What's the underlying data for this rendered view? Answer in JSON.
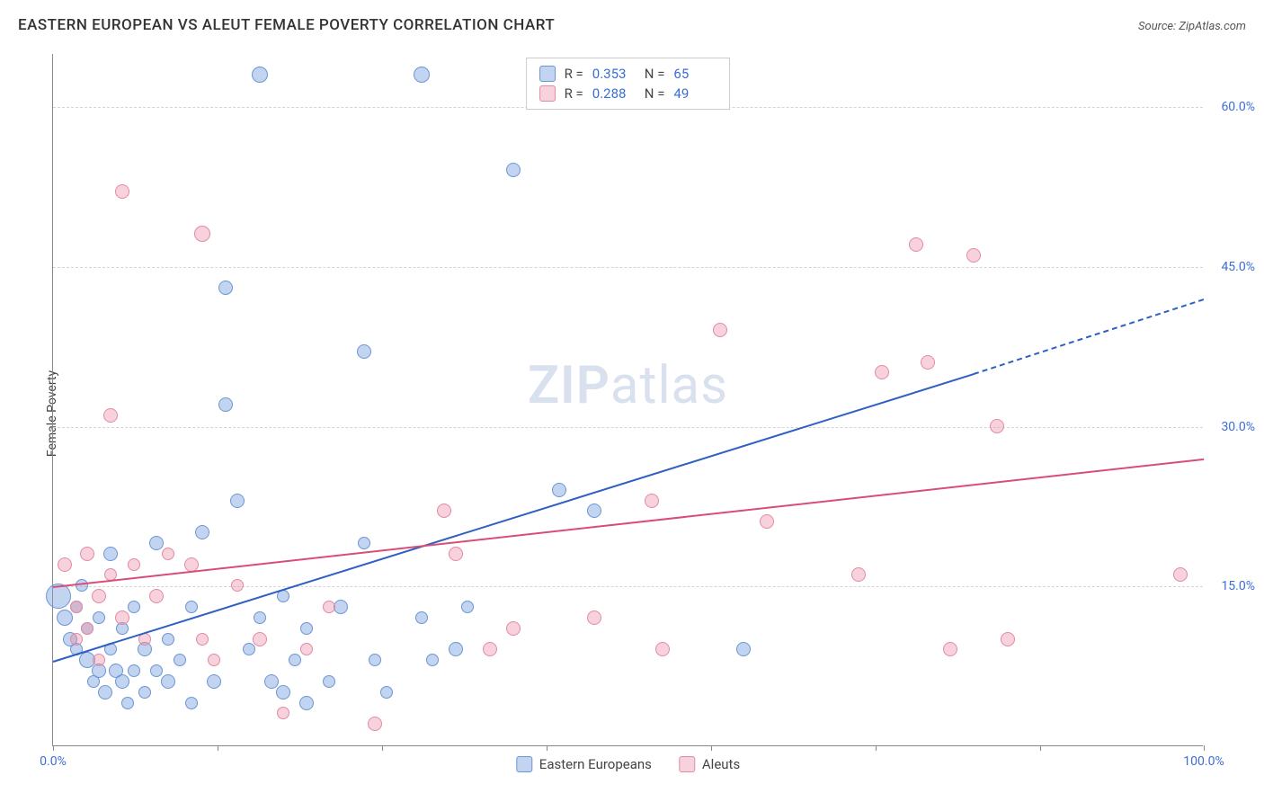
{
  "title": "EASTERN EUROPEAN VS ALEUT FEMALE POVERTY CORRELATION CHART",
  "source": "Source: ZipAtlas.com",
  "ylabel": "Female Poverty",
  "watermark": {
    "bold": "ZIP",
    "rest": "atlas"
  },
  "chart": {
    "type": "scatter-with-trend",
    "xlim": [
      0,
      100
    ],
    "ylim": [
      0,
      65
    ],
    "xtick_positions": [
      0,
      14.3,
      28.6,
      42.9,
      57.2,
      71.5,
      85.8,
      100
    ],
    "xtick_labels_shown": {
      "0": "0.0%",
      "100": "100.0%"
    },
    "ytick_positions": [
      15,
      30,
      45,
      60
    ],
    "ytick_labels": [
      "15.0%",
      "30.0%",
      "45.0%",
      "60.0%"
    ],
    "grid_color": "#d5d5d5",
    "axis_color": "#888888",
    "background_color": "#ffffff",
    "tick_label_color": "#3a6fd8",
    "tick_fontsize": 14
  },
  "series": [
    {
      "name": "Eastern Europeans",
      "color_fill": "rgba(120,160,220,0.45)",
      "color_stroke": "#6a96d6",
      "trend_color": "#2f5fc4",
      "r": 0.353,
      "n": 65,
      "trend": {
        "x1": 0,
        "y1": 8,
        "x2": 80,
        "y2": 35,
        "dash_to_x": 100,
        "dash_to_y": 42
      },
      "points": [
        {
          "x": 0.5,
          "y": 14,
          "r": 14
        },
        {
          "x": 1,
          "y": 12,
          "r": 9
        },
        {
          "x": 1.5,
          "y": 10,
          "r": 8
        },
        {
          "x": 2,
          "y": 13,
          "r": 7
        },
        {
          "x": 2,
          "y": 9,
          "r": 7
        },
        {
          "x": 2.5,
          "y": 15,
          "r": 7
        },
        {
          "x": 3,
          "y": 8,
          "r": 9
        },
        {
          "x": 3,
          "y": 11,
          "r": 7
        },
        {
          "x": 3.5,
          "y": 6,
          "r": 7
        },
        {
          "x": 4,
          "y": 7,
          "r": 8
        },
        {
          "x": 4,
          "y": 12,
          "r": 7
        },
        {
          "x": 4.5,
          "y": 5,
          "r": 8
        },
        {
          "x": 5,
          "y": 18,
          "r": 8
        },
        {
          "x": 5,
          "y": 9,
          "r": 7
        },
        {
          "x": 5.5,
          "y": 7,
          "r": 8
        },
        {
          "x": 6,
          "y": 6,
          "r": 8
        },
        {
          "x": 6,
          "y": 11,
          "r": 7
        },
        {
          "x": 6.5,
          "y": 4,
          "r": 7
        },
        {
          "x": 7,
          "y": 13,
          "r": 7
        },
        {
          "x": 7,
          "y": 7,
          "r": 7
        },
        {
          "x": 8,
          "y": 9,
          "r": 8
        },
        {
          "x": 8,
          "y": 5,
          "r": 7
        },
        {
          "x": 9,
          "y": 19,
          "r": 8
        },
        {
          "x": 9,
          "y": 7,
          "r": 7
        },
        {
          "x": 10,
          "y": 6,
          "r": 8
        },
        {
          "x": 10,
          "y": 10,
          "r": 7
        },
        {
          "x": 11,
          "y": 8,
          "r": 7
        },
        {
          "x": 12,
          "y": 4,
          "r": 7
        },
        {
          "x": 12,
          "y": 13,
          "r": 7
        },
        {
          "x": 13,
          "y": 20,
          "r": 8
        },
        {
          "x": 14,
          "y": 6,
          "r": 8
        },
        {
          "x": 15,
          "y": 32,
          "r": 8
        },
        {
          "x": 15,
          "y": 43,
          "r": 8
        },
        {
          "x": 16,
          "y": 23,
          "r": 8
        },
        {
          "x": 17,
          "y": 9,
          "r": 7
        },
        {
          "x": 18,
          "y": 63,
          "r": 9
        },
        {
          "x": 18,
          "y": 12,
          "r": 7
        },
        {
          "x": 19,
          "y": 6,
          "r": 8
        },
        {
          "x": 20,
          "y": 5,
          "r": 8
        },
        {
          "x": 20,
          "y": 14,
          "r": 7
        },
        {
          "x": 21,
          "y": 8,
          "r": 7
        },
        {
          "x": 22,
          "y": 4,
          "r": 8
        },
        {
          "x": 22,
          "y": 11,
          "r": 7
        },
        {
          "x": 24,
          "y": 6,
          "r": 7
        },
        {
          "x": 25,
          "y": 13,
          "r": 8
        },
        {
          "x": 27,
          "y": 37,
          "r": 8
        },
        {
          "x": 27,
          "y": 19,
          "r": 7
        },
        {
          "x": 28,
          "y": 8,
          "r": 7
        },
        {
          "x": 29,
          "y": 5,
          "r": 7
        },
        {
          "x": 32,
          "y": 63,
          "r": 9
        },
        {
          "x": 32,
          "y": 12,
          "r": 7
        },
        {
          "x": 33,
          "y": 8,
          "r": 7
        },
        {
          "x": 35,
          "y": 9,
          "r": 8
        },
        {
          "x": 36,
          "y": 13,
          "r": 7
        },
        {
          "x": 40,
          "y": 54,
          "r": 8
        },
        {
          "x": 44,
          "y": 24,
          "r": 8
        },
        {
          "x": 47,
          "y": 22,
          "r": 8
        },
        {
          "x": 60,
          "y": 9,
          "r": 8
        }
      ]
    },
    {
      "name": "Aleuts",
      "color_fill": "rgba(235,140,165,0.40)",
      "color_stroke": "#e48aa3",
      "trend_color": "#d94e78",
      "r": 0.288,
      "n": 49,
      "trend": {
        "x1": 0,
        "y1": 15,
        "x2": 100,
        "y2": 27
      },
      "points": [
        {
          "x": 1,
          "y": 17,
          "r": 8
        },
        {
          "x": 2,
          "y": 13,
          "r": 7
        },
        {
          "x": 2,
          "y": 10,
          "r": 7
        },
        {
          "x": 3,
          "y": 18,
          "r": 8
        },
        {
          "x": 3,
          "y": 11,
          "r": 7
        },
        {
          "x": 4,
          "y": 14,
          "r": 8
        },
        {
          "x": 4,
          "y": 8,
          "r": 7
        },
        {
          "x": 5,
          "y": 31,
          "r": 8
        },
        {
          "x": 5,
          "y": 16,
          "r": 7
        },
        {
          "x": 6,
          "y": 12,
          "r": 8
        },
        {
          "x": 6,
          "y": 52,
          "r": 8
        },
        {
          "x": 7,
          "y": 17,
          "r": 7
        },
        {
          "x": 8,
          "y": 10,
          "r": 7
        },
        {
          "x": 9,
          "y": 14,
          "r": 8
        },
        {
          "x": 10,
          "y": 18,
          "r": 7
        },
        {
          "x": 12,
          "y": 17,
          "r": 8
        },
        {
          "x": 13,
          "y": 48,
          "r": 9
        },
        {
          "x": 13,
          "y": 10,
          "r": 7
        },
        {
          "x": 14,
          "y": 8,
          "r": 7
        },
        {
          "x": 16,
          "y": 15,
          "r": 7
        },
        {
          "x": 18,
          "y": 10,
          "r": 8
        },
        {
          "x": 20,
          "y": 3,
          "r": 7
        },
        {
          "x": 22,
          "y": 9,
          "r": 7
        },
        {
          "x": 24,
          "y": 13,
          "r": 7
        },
        {
          "x": 28,
          "y": 2,
          "r": 8
        },
        {
          "x": 34,
          "y": 22,
          "r": 8
        },
        {
          "x": 35,
          "y": 18,
          "r": 8
        },
        {
          "x": 38,
          "y": 9,
          "r": 8
        },
        {
          "x": 40,
          "y": 11,
          "r": 8
        },
        {
          "x": 47,
          "y": 12,
          "r": 8
        },
        {
          "x": 52,
          "y": 23,
          "r": 8
        },
        {
          "x": 53,
          "y": 9,
          "r": 8
        },
        {
          "x": 58,
          "y": 39,
          "r": 8
        },
        {
          "x": 62,
          "y": 21,
          "r": 8
        },
        {
          "x": 70,
          "y": 16,
          "r": 8
        },
        {
          "x": 72,
          "y": 35,
          "r": 8
        },
        {
          "x": 75,
          "y": 47,
          "r": 8
        },
        {
          "x": 76,
          "y": 36,
          "r": 8
        },
        {
          "x": 78,
          "y": 9,
          "r": 8
        },
        {
          "x": 80,
          "y": 46,
          "r": 8
        },
        {
          "x": 82,
          "y": 30,
          "r": 8
        },
        {
          "x": 83,
          "y": 10,
          "r": 8
        },
        {
          "x": 98,
          "y": 16,
          "r": 8
        }
      ]
    }
  ],
  "legend_top": {
    "r_label": "R =",
    "n_label": "N ="
  },
  "legend_bottom": [
    "Eastern Europeans",
    "Aleuts"
  ]
}
